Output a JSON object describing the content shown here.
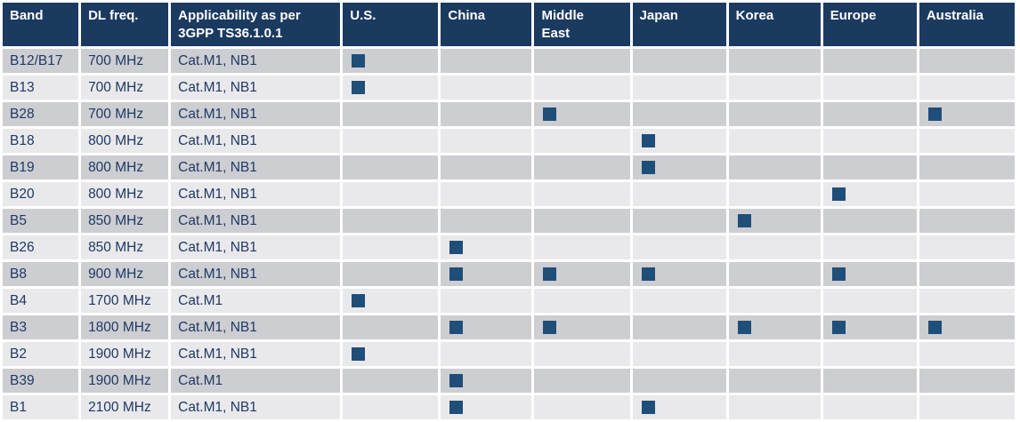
{
  "table": {
    "columns": [
      {
        "key": "band",
        "label": "Band"
      },
      {
        "key": "dl-freq",
        "label": "DL freq."
      },
      {
        "key": "applicability",
        "label": "Applicability as per 3GPP TS36.1.0.1"
      },
      {
        "key": "us",
        "label": "U.S."
      },
      {
        "key": "china",
        "label": "China"
      },
      {
        "key": "middle-east",
        "label": "Middle East"
      },
      {
        "key": "japan",
        "label": "Japan"
      },
      {
        "key": "korea",
        "label": "Korea"
      },
      {
        "key": "europe",
        "label": "Europe"
      },
      {
        "key": "australia",
        "label": "Australia"
      }
    ],
    "region_keys": [
      "us",
      "china",
      "middle-east",
      "japan",
      "korea",
      "europe",
      "australia"
    ],
    "rows": [
      {
        "band": "B12/B17",
        "freq": "700 MHz",
        "app": "Cat.M1, NB1",
        "regions": [
          1,
          0,
          0,
          0,
          0,
          0,
          0
        ]
      },
      {
        "band": "B13",
        "freq": "700 MHz",
        "app": "Cat.M1, NB1",
        "regions": [
          1,
          0,
          0,
          0,
          0,
          0,
          0
        ]
      },
      {
        "band": "B28",
        "freq": "700 MHz",
        "app": "Cat.M1, NB1",
        "regions": [
          0,
          0,
          1,
          0,
          0,
          0,
          1
        ]
      },
      {
        "band": "B18",
        "freq": "800 MHz",
        "app": "Cat.M1, NB1",
        "regions": [
          0,
          0,
          0,
          1,
          0,
          0,
          0
        ]
      },
      {
        "band": "B19",
        "freq": "800 MHz",
        "app": "Cat.M1, NB1",
        "regions": [
          0,
          0,
          0,
          1,
          0,
          0,
          0
        ]
      },
      {
        "band": "B20",
        "freq": "800 MHz",
        "app": "Cat.M1, NB1",
        "regions": [
          0,
          0,
          0,
          0,
          0,
          1,
          0
        ]
      },
      {
        "band": "B5",
        "freq": "850 MHz",
        "app": "Cat.M1, NB1",
        "regions": [
          0,
          0,
          0,
          0,
          1,
          0,
          0
        ]
      },
      {
        "band": "B26",
        "freq": "850 MHz",
        "app": "Cat.M1, NB1",
        "regions": [
          0,
          1,
          0,
          0,
          0,
          0,
          0
        ]
      },
      {
        "band": "B8",
        "freq": "900 MHz",
        "app": "Cat.M1, NB1",
        "regions": [
          0,
          1,
          1,
          1,
          0,
          1,
          0
        ]
      },
      {
        "band": "B4",
        "freq": "1700 MHz",
        "app": "Cat.M1",
        "regions": [
          1,
          0,
          0,
          0,
          0,
          0,
          0
        ]
      },
      {
        "band": "B3",
        "freq": "1800 MHz",
        "app": "Cat.M1, NB1",
        "regions": [
          0,
          1,
          1,
          0,
          1,
          1,
          1
        ]
      },
      {
        "band": "B2",
        "freq": "1900 MHz",
        "app": "Cat.M1, NB1",
        "regions": [
          1,
          0,
          0,
          0,
          0,
          0,
          0
        ]
      },
      {
        "band": "B39",
        "freq": "1900 MHz",
        "app": "Cat.M1",
        "regions": [
          0,
          1,
          0,
          0,
          0,
          0,
          0
        ]
      },
      {
        "band": "B1",
        "freq": "2100 MHz",
        "app": "Cat.M1, NB1",
        "regions": [
          0,
          1,
          0,
          1,
          0,
          0,
          0
        ]
      }
    ]
  },
  "icons": {
    "region_marker": "filled-square"
  },
  "colors": {
    "header_bg": "#1B3A60",
    "marker": "#1F4E79",
    "row_odd": "#CDCED2",
    "row_even": "#E9E9EB",
    "text": "#1F3864",
    "gap": "#FFFFFF"
  }
}
